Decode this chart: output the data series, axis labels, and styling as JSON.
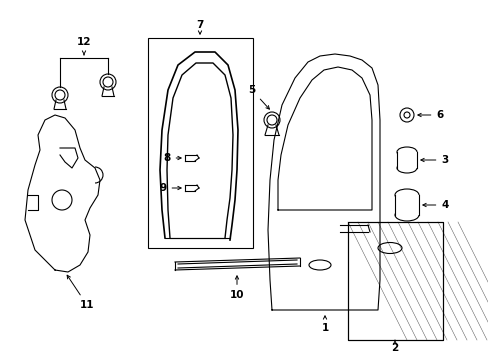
{
  "bg_color": "#ffffff",
  "fig_width": 4.89,
  "fig_height": 3.6,
  "dpi": 100,
  "line_color": "#000000",
  "label_fontsize": 7.5,
  "arrow_color": "#000000"
}
